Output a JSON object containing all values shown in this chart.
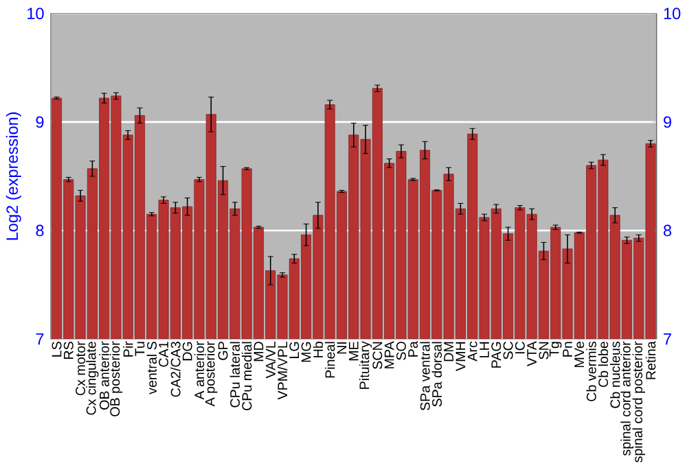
{
  "chart_data": {
    "type": "bar",
    "ylabel": "Log2 (expression)",
    "color": "#b83232",
    "grid": "y",
    "ylim": [
      7,
      10
    ],
    "yticks": [
      7,
      8,
      9,
      10
    ],
    "y2lim": [
      7,
      10
    ],
    "y2ticks": [
      7,
      8,
      9,
      10
    ],
    "categories": [
      "LS",
      "RS",
      "Cx motor",
      "Cx cingulate",
      "OB anterior",
      "OB posterior",
      "Pir",
      "Tu",
      "ventral S",
      "CA1",
      "CA2/CA3",
      "DG",
      "A anterior",
      "A posterior",
      "GP",
      "CPu lateral",
      "CPu medial",
      "MD",
      "VA/VL",
      "VPM/VPL",
      "LG",
      "MG",
      "Hb",
      "Pineal",
      "NI",
      "ME",
      "Pituitary",
      "SCN",
      "MPA",
      "SO",
      "Pa",
      "SPa ventral",
      "SPa dorsal",
      "DM",
      "VMH",
      "Arc",
      "LH",
      "PAG",
      "SC",
      "IC",
      "VTA",
      "SN",
      "Tg",
      "Pn",
      "MVe",
      "Cb vermis",
      "Cb lobe",
      "Cb nucleus",
      "spinal cord anterior",
      "spinal cord posterior",
      "Retina"
    ],
    "values": [
      9.22,
      8.47,
      8.32,
      8.57,
      9.22,
      9.24,
      8.88,
      9.06,
      8.15,
      8.28,
      8.21,
      8.22,
      8.47,
      9.07,
      8.46,
      8.2,
      8.57,
      8.03,
      7.63,
      7.59,
      7.74,
      7.96,
      8.14,
      9.16,
      8.36,
      8.88,
      8.84,
      9.31,
      8.62,
      8.73,
      8.47,
      8.74,
      8.37,
      8.52,
      8.2,
      8.89,
      8.12,
      8.2,
      7.97,
      8.21,
      8.15,
      7.81,
      8.03,
      7.83,
      7.98,
      8.6,
      8.65,
      8.14,
      7.91,
      7.93,
      8.8
    ],
    "errors": [
      0.01,
      0.02,
      0.05,
      0.07,
      0.045,
      0.03,
      0.04,
      0.07,
      0.015,
      0.03,
      0.05,
      0.08,
      0.02,
      0.16,
      0.13,
      0.06,
      0.01,
      0.01,
      0.13,
      0.02,
      0.04,
      0.1,
      0.12,
      0.04,
      0.01,
      0.11,
      0.13,
      0.03,
      0.04,
      0.06,
      0.01,
      0.08,
      0.005,
      0.06,
      0.05,
      0.05,
      0.03,
      0.04,
      0.06,
      0.02,
      0.05,
      0.08,
      0.02,
      0.13,
      0.005,
      0.03,
      0.05,
      0.07,
      0.03,
      0.03,
      0.03
    ]
  }
}
